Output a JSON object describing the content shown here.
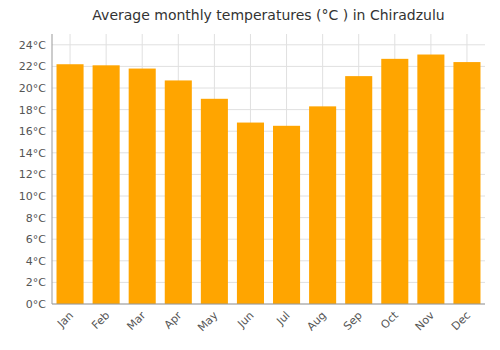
{
  "chart_data": {
    "type": "bar",
    "title": "Average monthly temperatures (°C ) in Chiradzulu",
    "categories": [
      "Jan",
      "Feb",
      "Mar",
      "Apr",
      "May",
      "Jun",
      "Jul",
      "Aug",
      "Sep",
      "Oct",
      "Nov",
      "Dec"
    ],
    "values": [
      22.2,
      22.1,
      21.8,
      20.7,
      19.0,
      16.8,
      16.5,
      18.3,
      21.1,
      22.7,
      23.1,
      22.4
    ],
    "color": "#FFA500",
    "ylim": [
      0,
      25
    ],
    "yticks": [
      {
        "value": 0,
        "label": "0°C"
      },
      {
        "value": 2,
        "label": "2°C"
      },
      {
        "value": 4,
        "label": "4°C"
      },
      {
        "value": 6,
        "label": "6°C"
      },
      {
        "value": 8,
        "label": "8°C"
      },
      {
        "value": 10,
        "label": "10°C"
      },
      {
        "value": 12,
        "label": "12°C"
      },
      {
        "value": 14,
        "label": "14°C"
      },
      {
        "value": 16,
        "label": "16°C"
      },
      {
        "value": 18,
        "label": "18°C"
      },
      {
        "value": 20,
        "label": "20°C"
      },
      {
        "value": 22,
        "label": "22°C"
      },
      {
        "value": 24,
        "label": "24°C"
      }
    ],
    "grid": true
  }
}
